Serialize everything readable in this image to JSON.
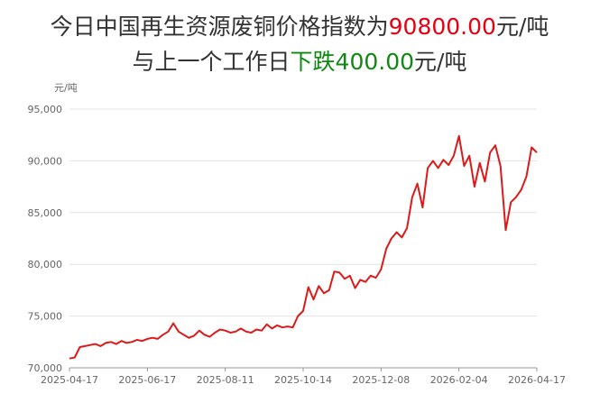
{
  "chart_data": {
    "type": "line",
    "title": {
      "line1": [
        "今日中国再生资源废铜价格指数为",
        "90800.00",
        "元/吨"
      ],
      "line2": [
        "与上一个工作日",
        "下跌400.00",
        "元/吨"
      ]
    },
    "title_colors": {
      "line1": [
        "#333333",
        "#e60012",
        "#333333"
      ],
      "line2": [
        "#333333",
        "#118811",
        "#333333"
      ]
    },
    "y_label": "元/吨",
    "categories": [
      "2025-04-17",
      null,
      null,
      null,
      null,
      null,
      null,
      null,
      null,
      null,
      null,
      null,
      null,
      null,
      null,
      "2025-06-17",
      null,
      null,
      null,
      null,
      null,
      null,
      null,
      null,
      null,
      null,
      null,
      null,
      null,
      null,
      "2025-08-11",
      null,
      null,
      null,
      null,
      null,
      null,
      null,
      null,
      null,
      null,
      null,
      null,
      null,
      null,
      "2025-10-14",
      null,
      null,
      null,
      null,
      null,
      null,
      null,
      null,
      null,
      null,
      null,
      null,
      null,
      null,
      "2025-12-08",
      null,
      null,
      null,
      null,
      null,
      null,
      null,
      null,
      null,
      null,
      null,
      null,
      null,
      null,
      "2026-02-04",
      null,
      null,
      null,
      null,
      null,
      null,
      null,
      null,
      null,
      null,
      null,
      null,
      null,
      null,
      "2026-04-17"
    ],
    "series": [
      {
        "name": "废铜价格指数",
        "color": "#dd1a1a",
        "values": [
          70900,
          71000,
          72000,
          72100,
          72200,
          72300,
          72100,
          72400,
          72500,
          72300,
          72600,
          72400,
          72500,
          72700,
          72600,
          72800,
          72900,
          72800,
          73200,
          73500,
          74300,
          73500,
          73200,
          72900,
          73100,
          73600,
          73200,
          73000,
          73400,
          73700,
          73600,
          73400,
          73500,
          73800,
          73500,
          73400,
          73700,
          73600,
          74200,
          73800,
          74100,
          73900,
          74000,
          73900,
          75000,
          75500,
          77800,
          76600,
          77900,
          77200,
          77500,
          79300,
          79200,
          78600,
          78900,
          77700,
          78500,
          78300,
          78900,
          78700,
          79500,
          81500,
          82500,
          83100,
          82600,
          83500,
          86500,
          87800,
          85500,
          89300,
          90000,
          89300,
          90100,
          89600,
          90500,
          92400,
          89500,
          90500,
          87500,
          89800,
          88000,
          90800,
          91500,
          89500,
          83300,
          86000,
          86500,
          87200,
          88500,
          91300,
          90800
        ]
      }
    ],
    "ylim": [
      70000,
      95000
    ],
    "yticks": [
      {
        "value": 70000,
        "label": "70,000"
      },
      {
        "value": 75000,
        "label": "75,000"
      },
      {
        "value": 80000,
        "label": "80,000"
      },
      {
        "value": 85000,
        "label": "85,000"
      },
      {
        "value": 90000,
        "label": "90,000"
      },
      {
        "value": 95000,
        "label": "95,000"
      }
    ],
    "grid": true
  }
}
